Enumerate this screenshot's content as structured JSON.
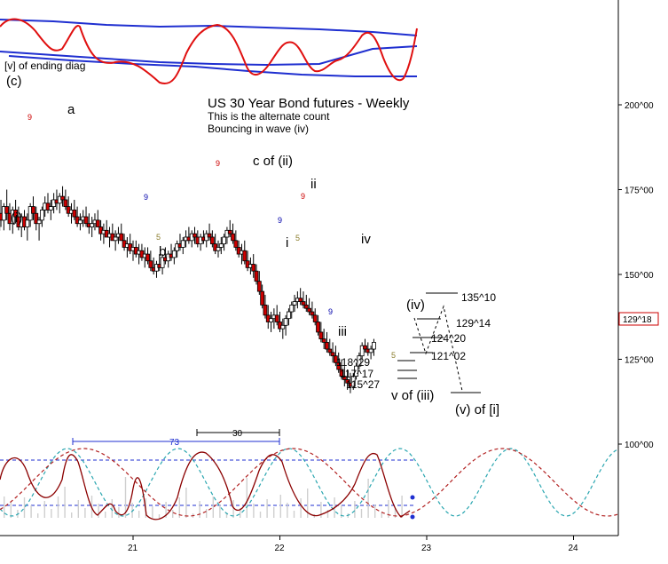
{
  "chart_data": {
    "type": "candlestick",
    "title": "US 30 Year Bond futures - Weekly",
    "subtitle": [
      "This is the alternate count",
      "Bouncing in wave (iv)"
    ],
    "y_axis_labels": [
      "200^00",
      "175^00",
      "150^00",
      "125^00",
      "100^00"
    ],
    "y_label_values": [
      200,
      175,
      150,
      125,
      100
    ],
    "x_axis_labels": [
      "21",
      "22",
      "23",
      "24"
    ],
    "x_label_values": [
      21,
      22,
      23,
      24
    ],
    "current_price": "129^18",
    "current_price_value": 129.56,
    "candles": [
      [
        20.02,
        151,
        153,
        149,
        152
      ],
      [
        20.04,
        152,
        158,
        151,
        157
      ],
      [
        20.06,
        157,
        164,
        156,
        163
      ],
      [
        20.08,
        163,
        176,
        160,
        168
      ],
      [
        20.1,
        168,
        172,
        164,
        166
      ],
      [
        20.12,
        166,
        171,
        163,
        170
      ],
      [
        20.14,
        170,
        175,
        166,
        168
      ],
      [
        20.16,
        168,
        171,
        163,
        165
      ],
      [
        20.18,
        165,
        170,
        162,
        169
      ],
      [
        20.2,
        169,
        172,
        165,
        167
      ],
      [
        20.22,
        167,
        170,
        163,
        164
      ],
      [
        20.24,
        164,
        168,
        161,
        167
      ],
      [
        20.26,
        167,
        169,
        163,
        164
      ],
      [
        20.28,
        164,
        168,
        160,
        166
      ],
      [
        20.3,
        166,
        171,
        164,
        170
      ],
      [
        20.32,
        170,
        173,
        166,
        168
      ],
      [
        20.34,
        168,
        170,
        163,
        165
      ],
      [
        20.36,
        165,
        167,
        160,
        166
      ],
      [
        20.38,
        166,
        170,
        164,
        169
      ],
      [
        20.4,
        169,
        173,
        167,
        171
      ],
      [
        20.42,
        171,
        174,
        168,
        169
      ],
      [
        20.44,
        169,
        172,
        166,
        170
      ],
      [
        20.46,
        170,
        174,
        168,
        172
      ],
      [
        20.48,
        172,
        175,
        169,
        171
      ],
      [
        20.5,
        171,
        174,
        168,
        173
      ],
      [
        20.52,
        173,
        176,
        170,
        172
      ],
      [
        20.54,
        172,
        175,
        169,
        170
      ],
      [
        20.56,
        170,
        173,
        167,
        168
      ],
      [
        20.58,
        168,
        171,
        165,
        169
      ],
      [
        20.6,
        169,
        172,
        166,
        167
      ],
      [
        20.62,
        167,
        170,
        164,
        165
      ],
      [
        20.64,
        165,
        168,
        163,
        166
      ],
      [
        20.66,
        166,
        169,
        164,
        167
      ],
      [
        20.68,
        167,
        170,
        164,
        165
      ],
      [
        20.7,
        165,
        168,
        162,
        164
      ],
      [
        20.72,
        164,
        167,
        161,
        165
      ],
      [
        20.74,
        165,
        168,
        163,
        166
      ],
      [
        20.76,
        166,
        169,
        164,
        164
      ],
      [
        20.78,
        164,
        166,
        160,
        162
      ],
      [
        20.8,
        162,
        165,
        159,
        163
      ],
      [
        20.82,
        163,
        166,
        161,
        161
      ],
      [
        20.84,
        161,
        164,
        158,
        162
      ],
      [
        20.86,
        162,
        165,
        160,
        160
      ],
      [
        20.88,
        160,
        163,
        157,
        161
      ],
      [
        20.9,
        161,
        164,
        159,
        162
      ],
      [
        20.92,
        162,
        165,
        160,
        160
      ],
      [
        20.94,
        160,
        162,
        157,
        158
      ],
      [
        20.96,
        158,
        161,
        155,
        159
      ],
      [
        20.98,
        159,
        162,
        156,
        157
      ],
      [
        21.0,
        157,
        160,
        154,
        158
      ],
      [
        21.02,
        158,
        160,
        155,
        156
      ],
      [
        21.04,
        156,
        159,
        153,
        157
      ],
      [
        21.06,
        157,
        159,
        154,
        155
      ],
      [
        21.08,
        155,
        158,
        152,
        156
      ],
      [
        21.1,
        156,
        158,
        153,
        154
      ],
      [
        21.12,
        154,
        157,
        151,
        152
      ],
      [
        21.14,
        152,
        155,
        150,
        151
      ],
      [
        21.16,
        151,
        154,
        149,
        153
      ],
      [
        21.18,
        153,
        156,
        151,
        152
      ],
      [
        21.2,
        152,
        156,
        150,
        155
      ],
      [
        21.22,
        155,
        158,
        153,
        154
      ],
      [
        21.24,
        154,
        157,
        152,
        156
      ],
      [
        21.26,
        156,
        159,
        154,
        155
      ],
      [
        21.28,
        155,
        158,
        153,
        157
      ],
      [
        21.3,
        157,
        160,
        155,
        159
      ],
      [
        21.32,
        159,
        162,
        157,
        158
      ],
      [
        21.34,
        158,
        161,
        156,
        160
      ],
      [
        21.36,
        160,
        163,
        158,
        161
      ],
      [
        21.38,
        161,
        164,
        159,
        160
      ],
      [
        21.4,
        160,
        163,
        158,
        162
      ],
      [
        21.42,
        162,
        164,
        159,
        161
      ],
      [
        21.44,
        161,
        163,
        158,
        159
      ],
      [
        21.46,
        159,
        162,
        157,
        161
      ],
      [
        21.48,
        161,
        163,
        159,
        160
      ],
      [
        21.5,
        160,
        163,
        158,
        162
      ],
      [
        21.52,
        162,
        165,
        160,
        161
      ],
      [
        21.54,
        161,
        163,
        158,
        159
      ],
      [
        21.56,
        159,
        162,
        156,
        157
      ],
      [
        21.58,
        157,
        160,
        155,
        158
      ],
      [
        21.6,
        158,
        161,
        156,
        159
      ],
      [
        21.62,
        159,
        162,
        157,
        161
      ],
      [
        21.64,
        161,
        164,
        159,
        163
      ],
      [
        21.66,
        163,
        166,
        161,
        162
      ],
      [
        21.68,
        162,
        165,
        159,
        160
      ],
      [
        21.7,
        160,
        163,
        157,
        158
      ],
      [
        21.72,
        158,
        160,
        155,
        156
      ],
      [
        21.74,
        156,
        159,
        153,
        157
      ],
      [
        21.76,
        157,
        160,
        153,
        154
      ],
      [
        21.78,
        154,
        157,
        151,
        152
      ],
      [
        21.8,
        152,
        155,
        150,
        153
      ],
      [
        21.82,
        153,
        156,
        149,
        151
      ],
      [
        21.84,
        151,
        153,
        147,
        148
      ],
      [
        21.86,
        148,
        151,
        144,
        145
      ],
      [
        21.88,
        145,
        147,
        140,
        141
      ],
      [
        21.9,
        141,
        144,
        137,
        138
      ],
      [
        21.92,
        138,
        141,
        134,
        136
      ],
      [
        21.94,
        136,
        139,
        133,
        137
      ],
      [
        21.96,
        137,
        140,
        134,
        138
      ],
      [
        21.98,
        138,
        141,
        135,
        136
      ],
      [
        22.0,
        136,
        139,
        133,
        134
      ],
      [
        22.02,
        134,
        137,
        131,
        135
      ],
      [
        22.04,
        135,
        138,
        132,
        137
      ],
      [
        22.06,
        137,
        140,
        135,
        139
      ],
      [
        22.08,
        139,
        142,
        137,
        141
      ],
      [
        22.1,
        141,
        144,
        139,
        142
      ],
      [
        22.12,
        142,
        145,
        140,
        143
      ],
      [
        22.14,
        143,
        146,
        141,
        142
      ],
      [
        22.16,
        142,
        145,
        140,
        141
      ],
      [
        22.18,
        141,
        144,
        139,
        140
      ],
      [
        22.2,
        140,
        143,
        138,
        139
      ],
      [
        22.22,
        139,
        142,
        137,
        138
      ],
      [
        22.24,
        138,
        140,
        135,
        136
      ],
      [
        22.26,
        136,
        138,
        132,
        133
      ],
      [
        22.28,
        133,
        136,
        130,
        131
      ],
      [
        22.3,
        131,
        134,
        128,
        130
      ],
      [
        22.32,
        130,
        133,
        127,
        128
      ],
      [
        22.34,
        128,
        131,
        126,
        127
      ],
      [
        22.36,
        127,
        130,
        124,
        126
      ],
      [
        22.38,
        126,
        129,
        123,
        124
      ],
      [
        22.4,
        124,
        127,
        121,
        122
      ],
      [
        22.42,
        122,
        125,
        119,
        120
      ],
      [
        22.44,
        120,
        123,
        117,
        119
      ],
      [
        22.46,
        119,
        122,
        116,
        118
      ],
      [
        22.48,
        118,
        121,
        115,
        117
      ],
      [
        22.5,
        117,
        121,
        116,
        120
      ],
      [
        22.52,
        120,
        124,
        119,
        123
      ],
      [
        22.54,
        123,
        127,
        122,
        126
      ],
      [
        22.56,
        126,
        130,
        125,
        129
      ],
      [
        22.58,
        129,
        131,
        127,
        128
      ],
      [
        22.6,
        128,
        130,
        126,
        127
      ],
      [
        22.62,
        127,
        129,
        125,
        128
      ],
      [
        22.64,
        128,
        131,
        126,
        130
      ]
    ],
    "wave_labels": [
      "[v] of ending diag",
      "(c)",
      "(i)",
      "a",
      "b",
      "c of (ii)",
      "i",
      "ii",
      "iii",
      "iv",
      "(iv)",
      "v of (iii)",
      "(v) of [i]"
    ],
    "count_labels": [
      {
        "text": "9",
        "color": "#cc0000"
      },
      {
        "text": "9",
        "color": "#cc0000"
      },
      {
        "text": "9",
        "color": "#cc0000"
      },
      {
        "text": "9",
        "color": "#0000aa"
      },
      {
        "text": "9",
        "color": "#0000aa"
      },
      {
        "text": "9",
        "color": "#0000aa"
      },
      {
        "text": "5",
        "color": "#8b7d2e"
      },
      {
        "text": "5",
        "color": "#8b7d2e"
      },
      {
        "text": "5",
        "color": "#8b7d2e"
      }
    ],
    "price_labels": [
      "135^10",
      "129^14",
      "124^20",
      "121^02",
      "118^29",
      "117^17",
      "115^27"
    ],
    "cycle_labels": [
      "73",
      "30"
    ],
    "colors": {
      "up": "#000000",
      "down": "#cc0000",
      "band": "#1f2fd0",
      "osc": "#e01010",
      "cycle_dark": "#8b0000",
      "cycle_cyan": "#2aa6b0"
    }
  }
}
